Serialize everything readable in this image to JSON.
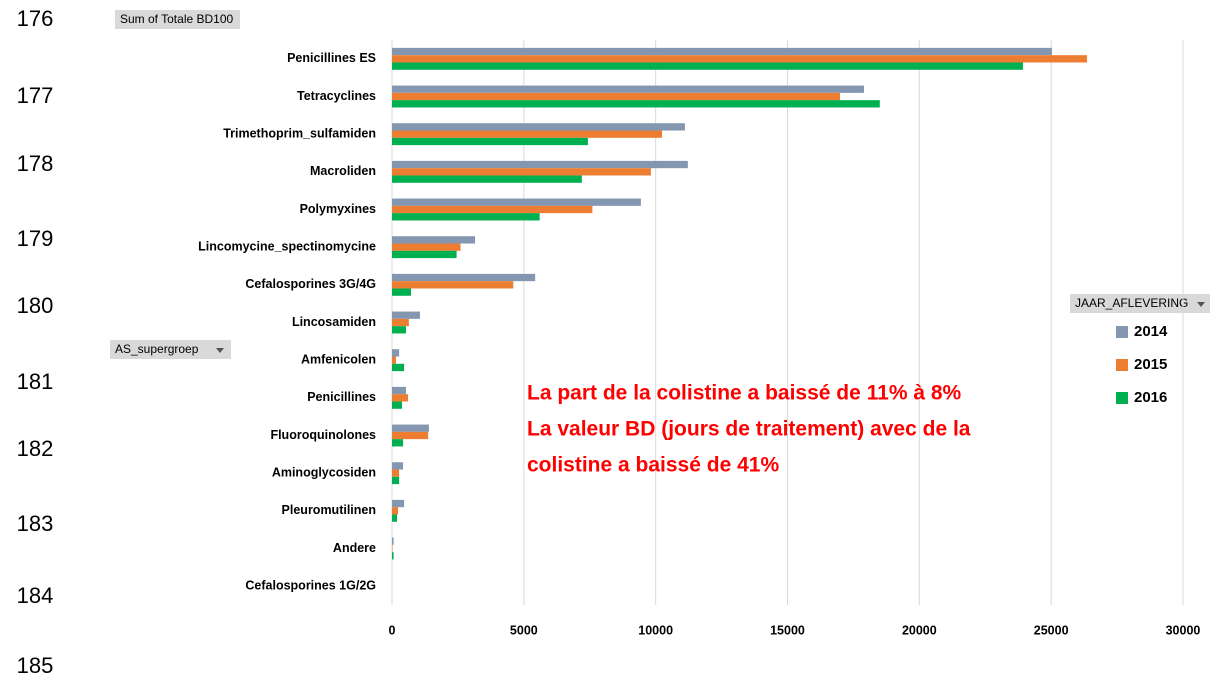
{
  "row_numbers": [
    "176",
    "177",
    "178",
    "179",
    "180",
    "181",
    "182",
    "183",
    "184",
    "185"
  ],
  "chart_data": {
    "type": "barh",
    "value_field": "Sum of Totale BD100",
    "axis_field": "AS_supergroep",
    "legend_field": "JAAR_AFLEVERING",
    "categories": [
      "Penicillines ES",
      "Tetracyclines",
      "Trimethoprim_sulfamiden",
      "Macroliden",
      "Polymyxines",
      "Lincomycine_spectinomycine",
      "Cefalosporines 3G/4G",
      "Lincosamiden",
      "Amfenicolen",
      "Penicillines",
      "Fluoroquinolones",
      "Aminoglycosiden",
      "Pleuromutilinen",
      "Andere",
      "Cefalosporines 1G/2G"
    ],
    "series": [
      {
        "name": "2014",
        "color": "#8497b0",
        "values": [
          25030,
          17900,
          11110,
          11220,
          9440,
          3150,
          5430,
          1060,
          270,
          530,
          1400,
          420,
          460,
          60,
          0
        ]
      },
      {
        "name": "2015",
        "color": "#ed7d31",
        "values": [
          26360,
          16990,
          10240,
          9820,
          7600,
          2600,
          4600,
          640,
          150,
          610,
          1370,
          270,
          230,
          20,
          0
        ]
      },
      {
        "name": "2016",
        "color": "#00b050",
        "values": [
          23930,
          18500,
          7430,
          7200,
          5600,
          2450,
          720,
          530,
          460,
          380,
          420,
          270,
          190,
          60,
          0
        ]
      }
    ],
    "xlim": [
      0,
      30000
    ],
    "xticks": [
      0,
      5000,
      10000,
      15000,
      20000,
      25000,
      30000
    ],
    "grid": true,
    "legend": "right",
    "annotation": [
      "La part de la colistine a baissé de 11% à 8%",
      "La valeur BD (jours de traitement) avec de la",
      "colistine a baissé de 41%"
    ]
  }
}
